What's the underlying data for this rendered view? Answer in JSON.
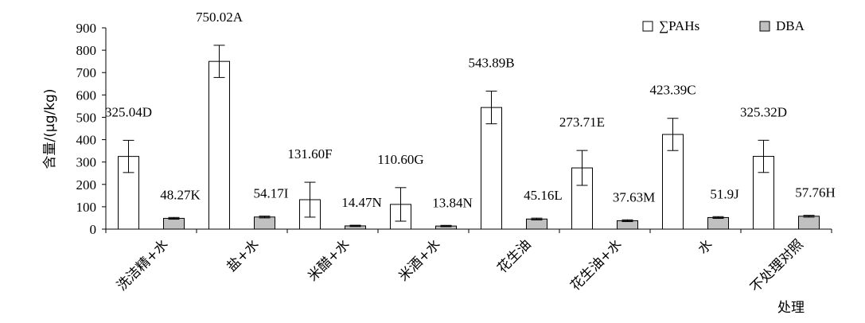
{
  "chart_data": {
    "type": "bar",
    "xlabel": "处理",
    "ylabel": "含量/(μg/kg)",
    "ylim": [
      0,
      900
    ],
    "yticks": [
      0,
      100,
      200,
      300,
      400,
      500,
      600,
      700,
      800,
      900
    ],
    "grid": false,
    "legend_position": "top-right",
    "categories": [
      "洗洁精+水",
      "盐+水",
      "米醋+水",
      "米酒+水",
      "花生油",
      "花生油+水",
      "水",
      "不处理对照"
    ],
    "series": [
      {
        "name": "∑PAHs",
        "color": "#ffffff",
        "values": [
          325.04,
          750.02,
          131.6,
          110.6,
          543.89,
          273.71,
          423.39,
          325.32
        ],
        "errors": [
          72,
          72,
          78,
          75,
          73,
          78,
          72,
          72
        ],
        "labels": [
          "325.04D",
          "750.02A",
          "131.60F",
          "110.60G",
          "543.89B",
          "273.71E",
          "423.39C",
          "325.32D"
        ]
      },
      {
        "name": "DBA",
        "color": "#c0c0c0",
        "values": [
          48.27,
          54.17,
          14.47,
          13.84,
          45.16,
          37.63,
          51.9,
          57.76
        ],
        "errors": [
          4,
          4,
          3,
          3,
          4,
          4,
          4,
          4
        ],
        "labels": [
          "48.27K",
          "54.17I",
          "14.47N",
          "13.84N",
          "45.16L",
          "37.63M",
          "51.9J",
          "57.76H"
        ]
      }
    ]
  }
}
